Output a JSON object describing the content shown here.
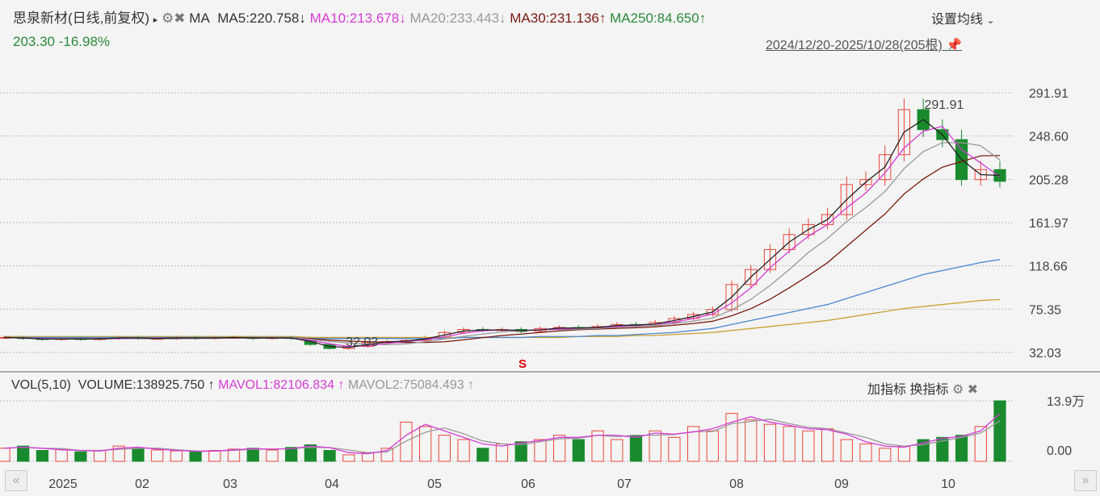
{
  "header": {
    "title": "思泉新材(日线,前复权)",
    "indicator": "MA",
    "ma5": "MA5:220.758",
    "ma5_arrow": "↓",
    "ma10": "MA10:213.678",
    "ma10_arrow": "↓",
    "ma20": "MA20:233.443",
    "ma20_arrow": "↓",
    "ma30": "MA30:231.136",
    "ma30_arrow": "↑",
    "ma250": "MA250:84.650",
    "ma250_arrow": "↑",
    "price": "203.30",
    "change": "-16.98%",
    "settings": "设置均线",
    "range": "2024/12/20-2025/10/28(205根)"
  },
  "volume_header": {
    "label": "VOL(5,10)",
    "volume": "VOLUME:138925.750",
    "arrow1": "↑",
    "mavol1": "MAVOL1:82106.834",
    "arrow2": "↑",
    "mavol2": "MAVOL2:75084.493",
    "arrow3": "↑",
    "add": "加指标",
    "switch": "换指标"
  },
  "colors": {
    "up": "#e8463c",
    "down": "#1a8a2e",
    "ma5": "#222222",
    "ma10": "#d63bd6",
    "ma20": "#999999",
    "ma30": "#7a1a10",
    "ma_blue": "#4a88d0",
    "ma250": "#c9a030"
  },
  "chart_data": {
    "type": "candlestick",
    "y_ticks": [
      "291.91",
      "248.60",
      "205.28",
      "161.97",
      "118.66",
      "75.35",
      "32.03"
    ],
    "ylim": [
      32.03,
      291.91
    ],
    "annotations": {
      "high": "291.91",
      "low": "32.03",
      "signal": "S"
    },
    "x_ticks": [
      "2025",
      "02",
      "03",
      "04",
      "05",
      "06",
      "07",
      "08",
      "09",
      "10"
    ],
    "closes": [
      47,
      46,
      45,
      46,
      45,
      46,
      47,
      46,
      46,
      47,
      46,
      47,
      47,
      46,
      47,
      46,
      40,
      36,
      38,
      42,
      43,
      44,
      47,
      52,
      55,
      54,
      55,
      53,
      56,
      57,
      56,
      58,
      60,
      59,
      62,
      66,
      70,
      75,
      100,
      115,
      135,
      150,
      160,
      170,
      200,
      205,
      230,
      275,
      255,
      245,
      205,
      215,
      203.3
    ],
    "ma_blue": [
      47,
      47,
      47,
      47,
      47,
      47,
      47,
      47,
      47,
      47,
      47,
      47,
      47,
      47,
      47,
      47,
      46,
      46,
      46,
      46,
      46,
      46,
      46,
      46,
      47,
      47,
      47,
      47,
      48,
      48,
      48,
      49,
      49,
      50,
      51,
      52,
      54,
      56,
      60,
      64,
      68,
      72,
      76,
      80,
      86,
      92,
      98,
      104,
      110,
      114,
      118,
      122,
      125
    ],
    "ma250": [
      48,
      48,
      48,
      48,
      48,
      48,
      48,
      48,
      48,
      48,
      48,
      48,
      48,
      48,
      48,
      48,
      47,
      47,
      47,
      47,
      47,
      47,
      47,
      47,
      47,
      47,
      47,
      47,
      47,
      47,
      48,
      48,
      48,
      49,
      49,
      50,
      51,
      52,
      54,
      56,
      58,
      60,
      62,
      64,
      67,
      70,
      73,
      76,
      78,
      80,
      82,
      84,
      85
    ],
    "volume_ylim": [
      "0.00",
      "13.9万"
    ],
    "volume_max": 13.9,
    "volumes": [
      3,
      3.5,
      2.5,
      2.8,
      2.2,
      2.5,
      3.5,
      3,
      2.6,
      2.4,
      2.2,
      2.5,
      2.8,
      3,
      2.6,
      3.2,
      3.8,
      2.5,
      1.5,
      2,
      3,
      9,
      8,
      6,
      5,
      3,
      4,
      4.5,
      5,
      6,
      5,
      7,
      5,
      6,
      7,
      5.5,
      8,
      7,
      11,
      9.5,
      8.5,
      8,
      7,
      7.5,
      5,
      4,
      3,
      3.5,
      5,
      5.5,
      6,
      8,
      13.9
    ]
  }
}
